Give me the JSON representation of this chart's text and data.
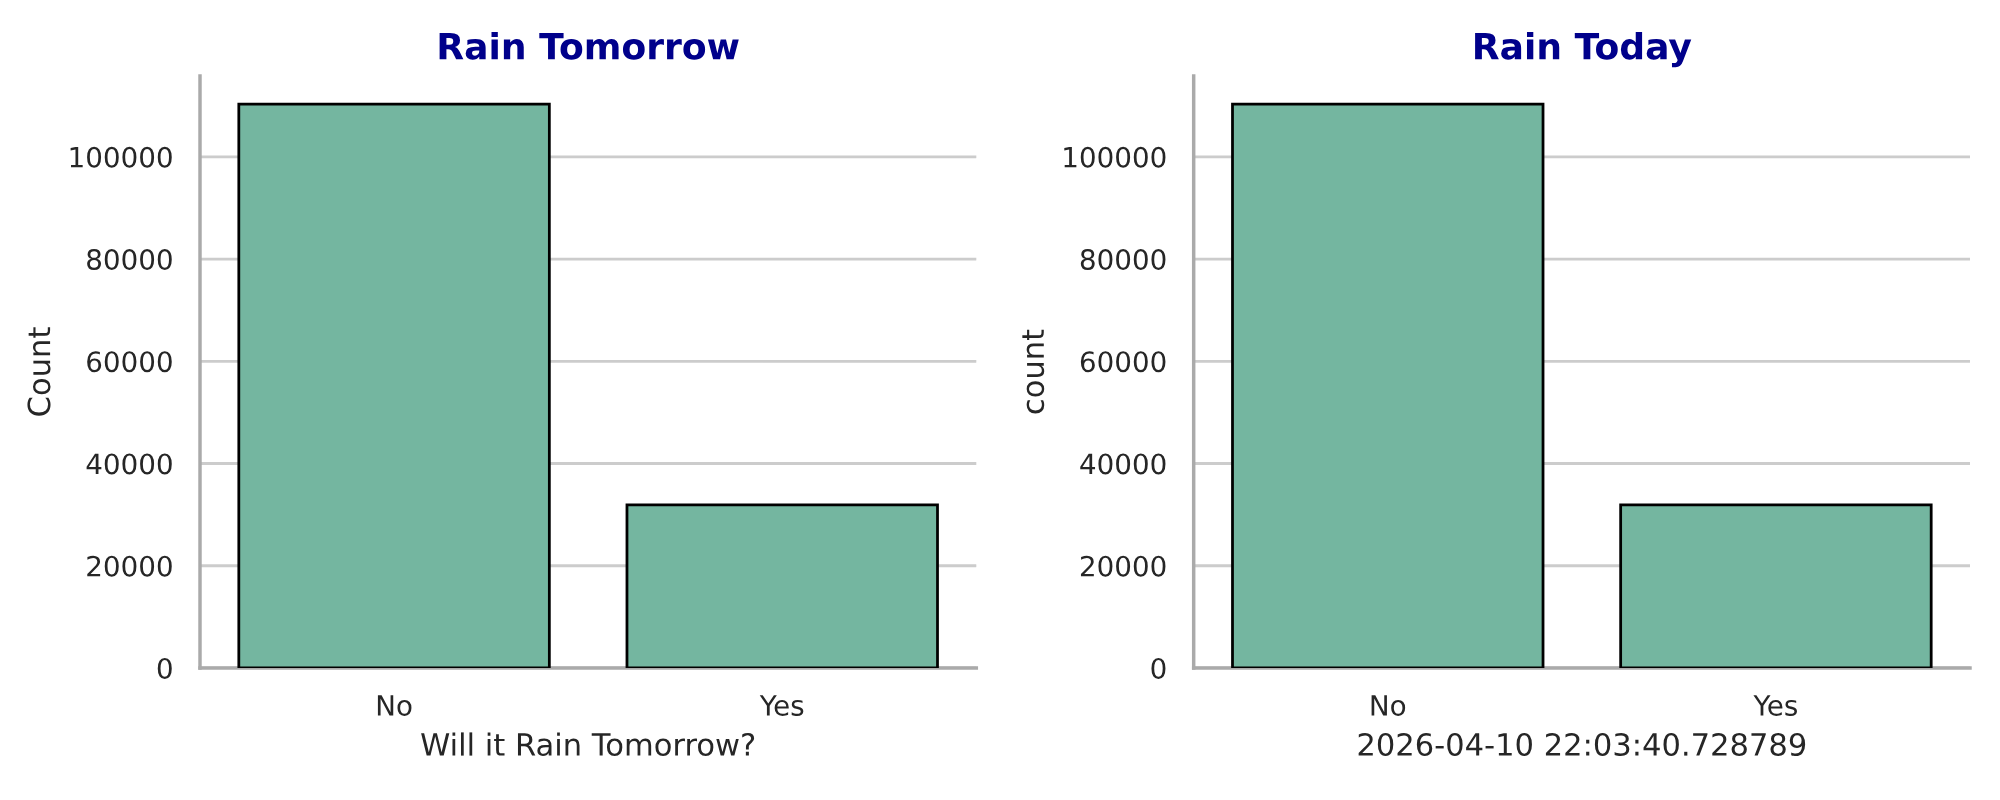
{
  "chart_data": [
    {
      "type": "bar",
      "title": "Rain Tomorrow",
      "xlabel": "Will it Rain Tomorrow?",
      "ylabel": "Count",
      "categories": [
        "No",
        "Yes"
      ],
      "values": [
        110300,
        31900
      ],
      "color": "#74b6a0",
      "ylim": [
        0,
        115800
      ],
      "yticks": [
        0,
        20000,
        40000,
        60000,
        80000,
        100000
      ],
      "grid": "y",
      "legend": false
    },
    {
      "type": "bar",
      "title": "Rain Today",
      "xlabel": "2026-04-10 22:03:40.728789",
      "ylabel": "count",
      "categories": [
        "No",
        "Yes"
      ],
      "values": [
        110300,
        31900
      ],
      "color": "#74b6a0",
      "ylim": [
        0,
        115800
      ],
      "yticks": [
        0,
        20000,
        40000,
        60000,
        80000,
        100000
      ],
      "grid": "y",
      "legend": false
    }
  ]
}
